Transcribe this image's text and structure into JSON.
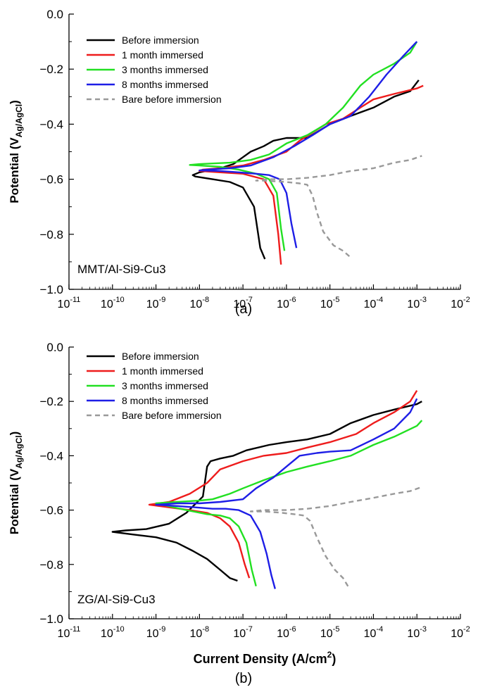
{
  "colors": {
    "before": "#000000",
    "one_month": "#ee1c1c",
    "three_months": "#22e022",
    "eight_months": "#1e1ee6",
    "bare": "#999999"
  },
  "chart_data": [
    {
      "type": "line",
      "panel_label": "(a)",
      "annotation": "MMT/Al-Si9-Cu3",
      "xlabel": "",
      "ylabel": "Potential (VAg/AgCl)",
      "ylabel_main": "Potential (V",
      "ylabel_sub": "Ag/AgCl",
      "ylabel_close": ")",
      "x_scale": "log",
      "xlim": [
        1e-11,
        0.01
      ],
      "ylim": [
        -1.0,
        0.0
      ],
      "x_ticks": [
        1e-11,
        1e-10,
        1e-09,
        1e-08,
        1e-07,
        1e-06,
        1e-05,
        0.0001,
        0.001,
        0.01
      ],
      "x_tick_labels": [
        "10-11",
        "10-10",
        "10-9",
        "10-8",
        "10-7",
        "10-6",
        "10-5",
        "10-4",
        "10-3",
        "10-2"
      ],
      "x_tick_base": "10",
      "x_tick_exps": [
        "-11",
        "-10",
        "-9",
        "-8",
        "-7",
        "-6",
        "-5",
        "-4",
        "-3",
        "-2"
      ],
      "y_ticks": [
        0.0,
        -0.2,
        -0.4,
        -0.6,
        -0.8,
        -1.0
      ],
      "y_tick_labels": [
        "0.0",
        "−0.2",
        "−0.4",
        "−0.6",
        "−0.8",
        "−1.0"
      ],
      "grid": false,
      "legend_position": "top-left",
      "series": [
        {
          "name": "Before immersion",
          "color_key": "before",
          "dash": false,
          "x": [
            3.2e-07,
            2.5e-07,
            1.8e-07,
            1e-07,
            5e-08,
            2e-08,
            8e-09,
            7e-09,
            1e-08,
            3e-08,
            6e-08,
            1e-07,
            1.5e-07,
            3e-07,
            5e-07,
            1e-06,
            3e-06,
            1e-05,
            3e-05,
            0.0001,
            0.0003,
            0.0007,
            0.0011
          ],
          "y": [
            -0.89,
            -0.85,
            -0.7,
            -0.63,
            -0.61,
            -0.6,
            -0.59,
            -0.585,
            -0.575,
            -0.56,
            -0.545,
            -0.52,
            -0.5,
            -0.48,
            -0.46,
            -0.45,
            -0.45,
            -0.4,
            -0.37,
            -0.34,
            -0.3,
            -0.28,
            -0.24
          ]
        },
        {
          "name": "1 month immersed",
          "color_key": "one_month",
          "dash": false,
          "x": [
            7.5e-07,
            6.5e-07,
            5e-07,
            3e-07,
            1e-07,
            3e-08,
            1e-08,
            1.2e-08,
            3e-08,
            1e-07,
            3e-07,
            1e-06,
            2e-06,
            4e-06,
            8e-06,
            2e-05,
            5e-05,
            0.0001,
            0.0003,
            0.001,
            0.0014
          ],
          "y": [
            -0.91,
            -0.8,
            -0.66,
            -0.6,
            -0.58,
            -0.575,
            -0.57,
            -0.565,
            -0.56,
            -0.55,
            -0.53,
            -0.5,
            -0.46,
            -0.43,
            -0.4,
            -0.38,
            -0.34,
            -0.31,
            -0.29,
            -0.27,
            -0.26
          ]
        },
        {
          "name": "3 months immersed",
          "color_key": "three_months",
          "dash": false,
          "x": [
            9e-07,
            7.5e-07,
            6e-07,
            4e-07,
            2e-07,
            8e-08,
            3e-08,
            1e-08,
            6e-09,
            1e-08,
            5e-08,
            1.5e-07,
            4e-07,
            1e-06,
            3e-06,
            8e-06,
            2e-05,
            5e-05,
            0.0001,
            0.0003,
            0.0007,
            0.001
          ],
          "y": [
            -0.86,
            -0.78,
            -0.65,
            -0.6,
            -0.58,
            -0.565,
            -0.555,
            -0.55,
            -0.548,
            -0.545,
            -0.54,
            -0.53,
            -0.51,
            -0.47,
            -0.44,
            -0.4,
            -0.34,
            -0.26,
            -0.22,
            -0.18,
            -0.14,
            -0.1
          ]
        },
        {
          "name": "8 months immersed",
          "color_key": "eight_months",
          "dash": false,
          "x": [
            1.7e-06,
            1.3e-06,
            1e-06,
            7e-07,
            4e-07,
            2e-07,
            8e-08,
            3e-08,
            1e-08,
            1.5e-08,
            5e-08,
            1.5e-07,
            5e-07,
            1.5e-06,
            4e-06,
            1e-05,
            3e-05,
            8e-05,
            0.0002,
            0.0005,
            0.001
          ],
          "y": [
            -0.85,
            -0.76,
            -0.65,
            -0.6,
            -0.585,
            -0.58,
            -0.575,
            -0.57,
            -0.568,
            -0.565,
            -0.56,
            -0.55,
            -0.52,
            -0.48,
            -0.44,
            -0.4,
            -0.37,
            -0.3,
            -0.22,
            -0.15,
            -0.1
          ]
        },
        {
          "name": "Bare before immersion",
          "color_key": "bare",
          "dash": true,
          "x": [
            2.8e-05,
            2e-05,
            1.2e-05,
            7e-06,
            5e-06,
            4e-06,
            3e-06,
            2e-06,
            1e-06,
            6e-07,
            3e-07,
            2e-07,
            4e-07,
            1e-06,
            3e-06,
            1e-05,
            3e-05,
            0.0001,
            0.0003,
            0.0007,
            0.0013
          ],
          "y": [
            -0.88,
            -0.86,
            -0.84,
            -0.79,
            -0.72,
            -0.66,
            -0.62,
            -0.615,
            -0.61,
            -0.608,
            -0.605,
            -0.605,
            -0.6,
            -0.6,
            -0.595,
            -0.585,
            -0.57,
            -0.56,
            -0.54,
            -0.53,
            -0.515
          ]
        }
      ]
    },
    {
      "type": "line",
      "panel_label": "(b)",
      "annotation": "ZG/Al-Si9-Cu3",
      "xlabel": "Current Density (A/cm2)",
      "xlabel_main": "Current Density (A/cm",
      "xlabel_sup": "2",
      "xlabel_close": ")",
      "ylabel": "Potential (VAg/AgCl)",
      "ylabel_main": "Potential (V",
      "ylabel_sub": "Ag/AgCl",
      "ylabel_close": ")",
      "x_scale": "log",
      "xlim": [
        1e-11,
        0.01
      ],
      "ylim": [
        -1.0,
        0.0
      ],
      "x_ticks": [
        1e-11,
        1e-10,
        1e-09,
        1e-08,
        1e-07,
        1e-06,
        1e-05,
        0.0001,
        0.001,
        0.01
      ],
      "x_tick_labels": [
        "10-11",
        "10-10",
        "10-9",
        "10-8",
        "10-7",
        "10-6",
        "10-5",
        "10-4",
        "10-3",
        "10-2"
      ],
      "x_tick_base": "10",
      "x_tick_exps": [
        "-11",
        "-10",
        "-9",
        "-8",
        "-7",
        "-6",
        "-5",
        "-4",
        "-3",
        "-2"
      ],
      "y_ticks": [
        0.0,
        -0.2,
        -0.4,
        -0.6,
        -0.8,
        -1.0
      ],
      "y_tick_labels": [
        "0.0",
        "−0.2",
        "−0.4",
        "−0.6",
        "−0.8",
        "−1.0"
      ],
      "grid": false,
      "legend_position": "top-left",
      "series": [
        {
          "name": "Before immersion",
          "color_key": "before",
          "dash": false,
          "x": [
            7.5e-08,
            5e-08,
            3e-08,
            1.5e-08,
            7e-09,
            3e-09,
            1e-09,
            3e-10,
            1e-10,
            2e-10,
            6e-10,
            2e-09,
            5e-09,
            1.2e-08,
            1.5e-08,
            1.8e-08,
            3e-08,
            6e-08,
            1.2e-07,
            4e-07,
            1e-06,
            3e-06,
            1e-05,
            3e-05,
            0.0001,
            0.0003,
            0.001,
            0.0013
          ],
          "y": [
            -0.86,
            -0.85,
            -0.82,
            -0.78,
            -0.75,
            -0.72,
            -0.7,
            -0.69,
            -0.68,
            -0.675,
            -0.67,
            -0.65,
            -0.61,
            -0.55,
            -0.44,
            -0.42,
            -0.41,
            -0.4,
            -0.38,
            -0.36,
            -0.35,
            -0.34,
            -0.32,
            -0.28,
            -0.25,
            -0.23,
            -0.21,
            -0.2
          ]
        },
        {
          "name": "1 month immersed",
          "color_key": "one_month",
          "dash": false,
          "x": [
            1.4e-07,
            1.1e-07,
            8e-08,
            5e-08,
            3e-08,
            1.5e-08,
            6e-09,
            2e-09,
            7e-10,
            2e-09,
            6e-09,
            1.5e-08,
            3e-08,
            1e-07,
            3e-07,
            1e-06,
            3e-06,
            1e-05,
            4e-05,
            0.0001,
            0.0003,
            0.0007,
            0.001
          ],
          "y": [
            -0.85,
            -0.8,
            -0.72,
            -0.66,
            -0.63,
            -0.61,
            -0.6,
            -0.59,
            -0.58,
            -0.57,
            -0.54,
            -0.5,
            -0.45,
            -0.42,
            -0.4,
            -0.39,
            -0.37,
            -0.35,
            -0.32,
            -0.28,
            -0.24,
            -0.2,
            -0.16
          ]
        },
        {
          "name": "3 months immersed",
          "color_key": "three_months",
          "dash": false,
          "x": [
            2e-07,
            1.6e-07,
            1.2e-07,
            8e-08,
            5e-08,
            3e-08,
            1.5e-08,
            5e-09,
            1e-09,
            3e-09,
            1e-08,
            2e-08,
            5e-08,
            1e-07,
            3e-07,
            1e-06,
            3e-06,
            1e-05,
            3e-05,
            0.0001,
            0.0003,
            0.001,
            0.0013
          ],
          "y": [
            -0.88,
            -0.82,
            -0.72,
            -0.66,
            -0.63,
            -0.62,
            -0.615,
            -0.6,
            -0.575,
            -0.57,
            -0.565,
            -0.56,
            -0.54,
            -0.52,
            -0.49,
            -0.46,
            -0.44,
            -0.42,
            -0.4,
            -0.36,
            -0.33,
            -0.29,
            -0.27
          ]
        },
        {
          "name": "8 months immersed",
          "color_key": "eight_months",
          "dash": false,
          "x": [
            5.5e-07,
            4.5e-07,
            3.5e-07,
            2.5e-07,
            1.5e-07,
            8e-08,
            4e-08,
            2e-08,
            8e-09,
            3e-09,
            1e-09,
            3e-09,
            1e-08,
            3e-08,
            1e-07,
            2e-07,
            5e-07,
            1e-06,
            2e-06,
            5e-06,
            1e-05,
            3e-05,
            0.0001,
            0.0003,
            0.0007,
            0.001
          ],
          "y": [
            -0.89,
            -0.84,
            -0.76,
            -0.68,
            -0.62,
            -0.6,
            -0.595,
            -0.595,
            -0.59,
            -0.585,
            -0.58,
            -0.575,
            -0.575,
            -0.57,
            -0.56,
            -0.52,
            -0.48,
            -0.44,
            -0.4,
            -0.39,
            -0.385,
            -0.38,
            -0.34,
            -0.3,
            -0.24,
            -0.19
          ]
        },
        {
          "name": "Bare before immersion",
          "color_key": "bare",
          "dash": true,
          "x": [
            2.6e-05,
            2e-05,
            1.3e-05,
            8e-06,
            5e-06,
            3.5e-06,
            2.5e-06,
            1.5e-06,
            8e-07,
            3e-07,
            1.5e-07,
            3e-07,
            1e-06,
            3e-06,
            1e-05,
            3e-05,
            0.0001,
            0.0003,
            0.0007,
            0.0013
          ],
          "y": [
            -0.88,
            -0.85,
            -0.82,
            -0.77,
            -0.7,
            -0.64,
            -0.62,
            -0.615,
            -0.61,
            -0.605,
            -0.605,
            -0.6,
            -0.6,
            -0.595,
            -0.585,
            -0.57,
            -0.555,
            -0.54,
            -0.53,
            -0.515
          ]
        }
      ]
    }
  ]
}
